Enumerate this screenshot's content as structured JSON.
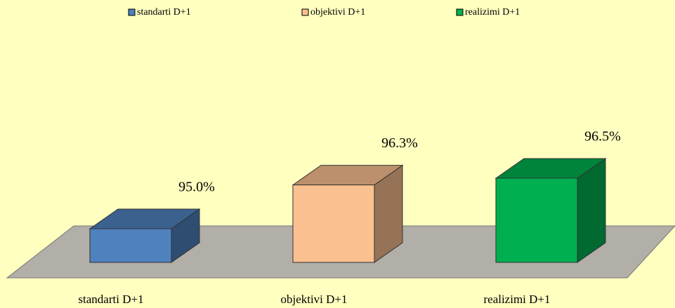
{
  "chart_data": {
    "type": "bar3d",
    "categories": [
      "standarti D+1",
      "objektivi D+1",
      "realizimi D+1"
    ],
    "values": [
      95.0,
      96.3,
      96.5
    ],
    "value_labels": [
      "95.0%",
      "96.3%",
      "96.5%"
    ],
    "colors": [
      "#4f81bd",
      "#fac090",
      "#00b050"
    ],
    "ylim": [
      94,
      97
    ],
    "legend": "top"
  }
}
